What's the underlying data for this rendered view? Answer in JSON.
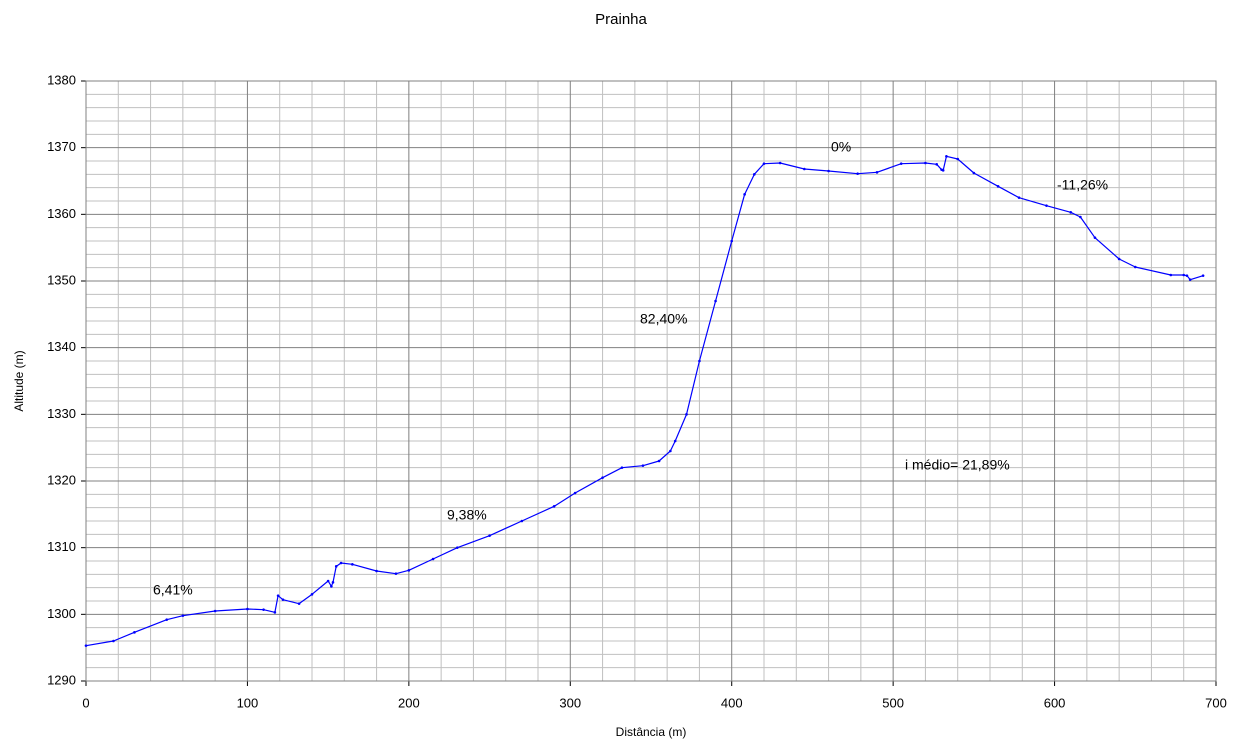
{
  "chart_data": {
    "type": "line",
    "title": "Prainha",
    "x_label": "Distância (m)",
    "y_label": "Altitude (m)",
    "x": [
      0,
      17,
      30,
      50,
      60,
      80,
      100,
      110,
      117,
      119,
      122,
      132,
      140,
      150,
      152,
      153,
      155,
      158,
      165,
      180,
      192,
      200,
      215,
      230,
      250,
      270,
      290,
      303,
      320,
      332,
      345,
      355,
      362,
      365,
      372,
      380,
      390,
      400,
      408,
      414,
      420,
      430,
      445,
      460,
      478,
      490,
      505,
      520,
      527,
      530,
      531,
      533,
      540,
      550,
      565,
      578,
      595,
      610,
      616,
      625,
      640,
      650,
      672,
      680,
      682,
      684,
      692
    ],
    "series": [
      {
        "name": "Altitude",
        "color": "#0000ff",
        "values": [
          1295.3,
          1296,
          1297.3,
          1299.2,
          1299.8,
          1300.5,
          1300.8,
          1300.7,
          1300.3,
          1302.8,
          1302.2,
          1301.6,
          1303,
          1305,
          1304.2,
          1304.8,
          1307.2,
          1307.7,
          1307.5,
          1306.5,
          1306.1,
          1306.6,
          1308.3,
          1310,
          1311.8,
          1314,
          1316.2,
          1318.2,
          1320.5,
          1322,
          1322.3,
          1323,
          1324.5,
          1326,
          1330,
          1338,
          1347,
          1356,
          1363,
          1366,
          1367.6,
          1367.7,
          1366.8,
          1366.5,
          1366.1,
          1366.3,
          1367.6,
          1367.7,
          1367.5,
          1366.7,
          1366.6,
          1368.7,
          1368.3,
          1366.2,
          1364.2,
          1362.5,
          1361.3,
          1360.3,
          1359.6,
          1356.5,
          1353.3,
          1352.1,
          1350.9,
          1350.9,
          1350.8,
          1350.2,
          1350.8
        ]
      }
    ],
    "annotations": [
      "6,41%",
      "9,38%",
      "82,40%",
      "0%",
      "-11,26%",
      "i médio= 21,89%"
    ],
    "xlim": [
      0,
      700
    ],
    "xticks": [
      0,
      100,
      200,
      300,
      400,
      500,
      600,
      700
    ],
    "ylim": [
      1290,
      1380
    ],
    "yticks": [
      1290,
      1300,
      1310,
      1320,
      1330,
      1340,
      1350,
      1360,
      1370,
      1380
    ],
    "grid": true,
    "x_minor_grid": [
      20,
      40,
      60,
      80,
      120,
      140,
      160,
      180,
      220,
      240,
      260,
      280,
      320,
      340,
      360,
      380,
      420,
      440,
      460,
      480,
      520,
      540,
      560,
      580,
      620,
      640,
      660,
      680
    ],
    "y_minor_grid": [
      1292,
      1294,
      1296,
      1298,
      1302,
      1304,
      1306,
      1308,
      1312,
      1314,
      1316,
      1318,
      1322,
      1324,
      1326,
      1328,
      1332,
      1334,
      1336,
      1338,
      1342,
      1344,
      1346,
      1348,
      1352,
      1354,
      1356,
      1358,
      1362,
      1364,
      1366,
      1368,
      1372,
      1374,
      1376,
      1378
    ]
  }
}
